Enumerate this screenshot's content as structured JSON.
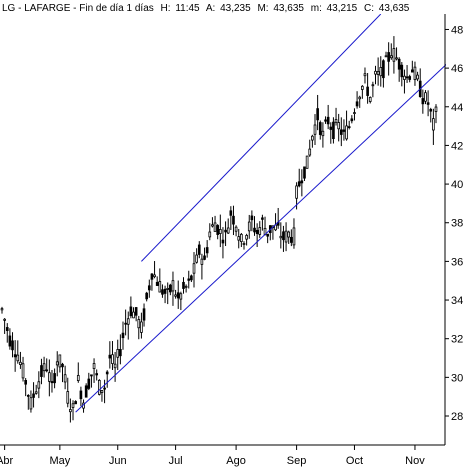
{
  "header": {
    "symbol": "LG",
    "name": "LAFARGE",
    "period": "Fin de día 1 días",
    "time_label": "H:",
    "time": "11:45",
    "open_label": "A:",
    "open": "43,235",
    "high_label": "M:",
    "high": "43,635",
    "low_label": "m:",
    "low": "43,215",
    "close_label": "C:",
    "close": "43,635"
  },
  "colors": {
    "background": "#ffffff",
    "candle": "#000000",
    "channel": "#1a1acc",
    "gridline": "#000000"
  },
  "chart_data": {
    "type": "candlestick",
    "title": "",
    "xlabel": "",
    "ylabel": "",
    "ylim": [
      26.5,
      48.8
    ],
    "y_ticks": [
      28,
      30,
      32,
      34,
      36,
      38,
      40,
      42,
      44,
      46,
      48
    ],
    "y_tick_labels": [
      "28",
      "30",
      "32",
      "34",
      "36",
      "38",
      "40",
      "42",
      "44",
      "46",
      "48"
    ],
    "x_range": [
      0,
      165
    ],
    "x_ticks": [
      {
        "label": "Abr",
        "x": 1
      },
      {
        "label": "May",
        "x": 22
      },
      {
        "label": "Jun",
        "x": 44
      },
      {
        "label": "Jul",
        "x": 66
      },
      {
        "label": "Ago",
        "x": 89
      },
      {
        "label": "Sep",
        "x": 112
      },
      {
        "label": "Oct",
        "x": 134
      },
      {
        "label": "Nov",
        "x": 157
      }
    ],
    "grid": false,
    "trend_channel": [
      {
        "name": "upper",
        "points": [
          [
            53,
            36
          ],
          [
            144,
            48.8
          ]
        ]
      },
      {
        "name": "lower",
        "points": [
          [
            28,
            28.2
          ],
          [
            169,
            46.2
          ]
        ]
      }
    ],
    "close_path": [
      [
        0,
        33.5
      ],
      [
        3,
        32.0
      ],
      [
        6,
        31.2
      ],
      [
        9,
        29.8
      ],
      [
        11,
        28.6
      ],
      [
        13,
        29.5
      ],
      [
        15,
        30.2
      ],
      [
        17,
        30.6
      ],
      [
        19,
        29.4
      ],
      [
        21,
        30.9
      ],
      [
        23,
        30.6
      ],
      [
        25,
        29.0
      ],
      [
        27,
        28.3
      ],
      [
        29,
        29.8
      ],
      [
        31,
        28.8
      ],
      [
        33,
        29.8
      ],
      [
        35,
        30.5
      ],
      [
        37,
        29.5
      ],
      [
        39,
        29.5
      ],
      [
        41,
        31.0
      ],
      [
        43,
        30.5
      ],
      [
        45,
        31.5
      ],
      [
        47,
        32.8
      ],
      [
        49,
        33.5
      ],
      [
        51,
        33.2
      ],
      [
        53,
        32.5
      ],
      [
        55,
        34.0
      ],
      [
        57,
        35.5
      ],
      [
        59,
        35.0
      ],
      [
        61,
        34.5
      ],
      [
        63,
        34.2
      ],
      [
        65,
        34.8
      ],
      [
        67,
        34.0
      ],
      [
        69,
        34.5
      ],
      [
        71,
        34.8
      ],
      [
        73,
        35.5
      ],
      [
        75,
        36.5
      ],
      [
        77,
        36.0
      ],
      [
        79,
        37.5
      ],
      [
        81,
        38.0
      ],
      [
        83,
        37.5
      ],
      [
        85,
        37.3
      ],
      [
        87,
        38.5
      ],
      [
        89,
        38.0
      ],
      [
        91,
        37.0
      ],
      [
        93,
        37.5
      ],
      [
        95,
        38.0
      ],
      [
        97,
        37.5
      ],
      [
        99,
        38.0
      ],
      [
        101,
        37.5
      ],
      [
        103,
        37.8
      ],
      [
        105,
        37.6
      ],
      [
        107,
        37.2
      ],
      [
        109,
        37.4
      ],
      [
        111,
        37.3
      ],
      [
        112,
        39.5
      ],
      [
        114,
        40.5
      ],
      [
        116,
        41.0
      ],
      [
        118,
        42.5
      ],
      [
        120,
        43.5
      ],
      [
        122,
        42.5
      ],
      [
        124,
        43.3
      ],
      [
        126,
        42.8
      ],
      [
        128,
        43.0
      ],
      [
        130,
        42.5
      ],
      [
        132,
        43.0
      ],
      [
        134,
        44.0
      ],
      [
        136,
        44.8
      ],
      [
        138,
        45.3
      ],
      [
        140,
        44.5
      ],
      [
        142,
        45.5
      ],
      [
        144,
        45.7
      ],
      [
        146,
        46.2
      ],
      [
        148,
        46.9
      ],
      [
        150,
        46.5
      ],
      [
        152,
        46.0
      ],
      [
        154,
        45.5
      ],
      [
        156,
        46.0
      ],
      [
        158,
        45.3
      ],
      [
        160,
        44.5
      ],
      [
        162,
        44.2
      ],
      [
        163,
        43.6
      ],
      [
        164,
        43.0
      ],
      [
        165,
        43.6
      ]
    ]
  }
}
